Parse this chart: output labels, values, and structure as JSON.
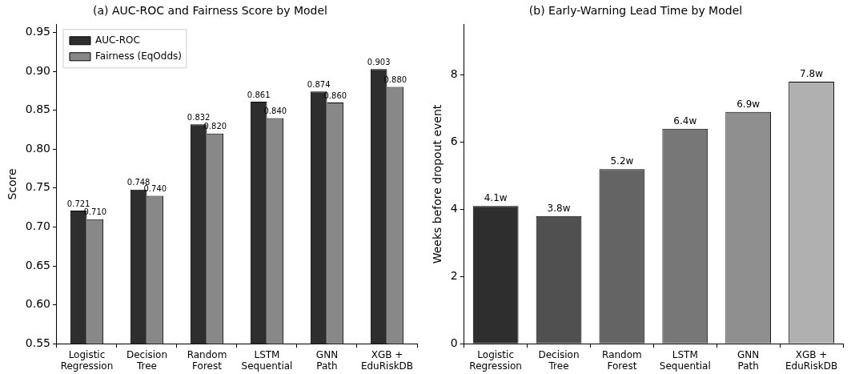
{
  "chart_data": [
    {
      "type": "bar",
      "title": "(a) AUC-ROC and Fairness Score by Model",
      "ylabel": "Score",
      "categories": [
        "Logistic\nRegression",
        "Decision\nTree",
        "Random\nForest",
        "LSTM\nSequential",
        "GNN\nPath",
        "XGB +\nEduRiskDB"
      ],
      "series": [
        {
          "name": "AUC-ROC",
          "color": "#2e2e2e",
          "values": [
            0.721,
            0.748,
            0.832,
            0.861,
            0.874,
            0.903
          ],
          "value_labels": [
            "0.721",
            "0.748",
            "0.832",
            "0.861",
            "0.874",
            "0.903"
          ]
        },
        {
          "name": "Fairness (EqOdds)",
          "color": "#888888",
          "values": [
            0.71,
            0.74,
            0.82,
            0.84,
            0.86,
            0.88
          ],
          "value_labels": [
            "0.710",
            "0.740",
            "0.820",
            "0.840",
            "0.860",
            "0.880"
          ]
        }
      ],
      "ylim": [
        0.55,
        0.96
      ],
      "yticks": [
        0.55,
        {
          "value": 0.6,
          "label": "0.60"
        },
        0.65,
        {
          "value": 0.7,
          "label": "0.70"
        },
        0.75,
        {
          "value": 0.8,
          "label": "0.80"
        },
        0.85,
        {
          "value": 0.9,
          "label": "0.90"
        },
        0.95
      ],
      "legend": "top left"
    },
    {
      "type": "bar",
      "title": "(b) Early-Warning Lead Time by Model",
      "ylabel": "Weeks before dropout event",
      "categories": [
        "Logistic\nRegression",
        "Decision\nTree",
        "Random\nForest",
        "LSTM\nSequential",
        "GNN\nPath",
        "XGB +\nEduRiskDB"
      ],
      "values": [
        4.1,
        3.8,
        5.2,
        6.4,
        6.9,
        7.8
      ],
      "colors": [
        "#2e2e2e",
        "#505050",
        "#646464",
        "#777777",
        "#8f8f8f",
        "#b0b0b0"
      ],
      "value_labels": [
        "4.1w",
        "3.8w",
        "5.2w",
        "6.4w",
        "6.9w",
        "7.8w"
      ],
      "ylim": [
        0,
        9.5
      ],
      "yticks": [
        0,
        2,
        4,
        6,
        8
      ]
    }
  ]
}
